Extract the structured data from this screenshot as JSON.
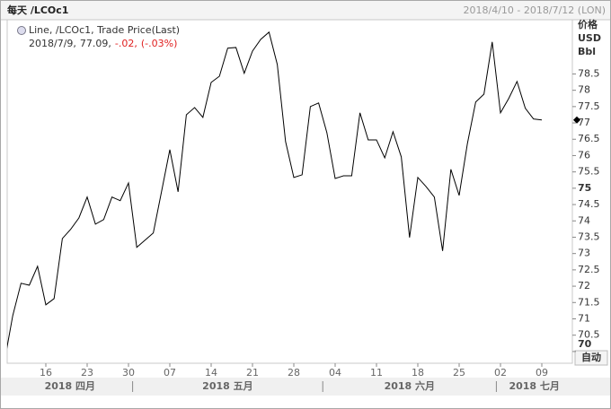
{
  "header": {
    "title": "每天 /LCOc1",
    "range": "2018/4/10 - 2018/7/12 (LON)"
  },
  "chart_data": {
    "type": "line",
    "legend": {
      "label": "Line, /LCOc1, Trade Price(Last)",
      "date": "2018/7/9,",
      "price": "77.09,",
      "change": "-.02,",
      "change_pct": "(-.03%)",
      "change_color": "#e02020"
    },
    "categories": [
      null,
      null,
      null,
      null,
      null,
      "16",
      null,
      null,
      null,
      null,
      "23",
      null,
      null,
      null,
      null,
      "30",
      null,
      null,
      null,
      null,
      "07",
      null,
      null,
      null,
      null,
      "14",
      null,
      null,
      null,
      null,
      "21",
      null,
      null,
      null,
      null,
      "28",
      null,
      null,
      null,
      null,
      "04",
      null,
      null,
      null,
      null,
      "11",
      null,
      null,
      null,
      null,
      "18",
      null,
      null,
      null,
      null,
      "25",
      null,
      null,
      null,
      null,
      "02",
      null,
      null,
      null,
      null,
      "09"
    ],
    "months": [
      "2018 四月",
      "2018 五月",
      "2018 六月",
      "2018 七月"
    ],
    "series": [
      {
        "name": "Line",
        "color": "#000000",
        "values": [
          69.7,
          71.1,
          72.09,
          72.03,
          72.61,
          71.43,
          71.62,
          73.46,
          73.74,
          74.09,
          74.73,
          73.9,
          74.04,
          74.73,
          74.62,
          75.16,
          73.19,
          73.41,
          73.63,
          74.9,
          76.18,
          74.89,
          77.25,
          77.47,
          77.17,
          78.24,
          78.43,
          79.29,
          79.31,
          78.52,
          79.2,
          79.56,
          79.78,
          78.79,
          76.43,
          75.33,
          75.41,
          77.5,
          77.61,
          76.7,
          75.3,
          75.38,
          75.38,
          77.31,
          76.48,
          76.48,
          75.93,
          76.73,
          75.96,
          73.49,
          75.33,
          75.05,
          74.73,
          73.08,
          75.58,
          74.78,
          76.37,
          77.64,
          77.88,
          79.48,
          77.31,
          77.75,
          78.27,
          77.45,
          77.12,
          77.09
        ]
      }
    ],
    "ylim": [
      69.64,
      80.16
    ],
    "yticks": [
      70,
      70.5,
      71,
      71.5,
      72,
      72.5,
      73,
      73.5,
      74,
      74.5,
      75,
      75.5,
      76,
      76.5,
      77,
      77.5,
      78,
      78.5
    ],
    "y_unit": [
      "价格",
      "USD",
      "Bbl"
    ],
    "scale_button": "自动",
    "grid": false
  }
}
